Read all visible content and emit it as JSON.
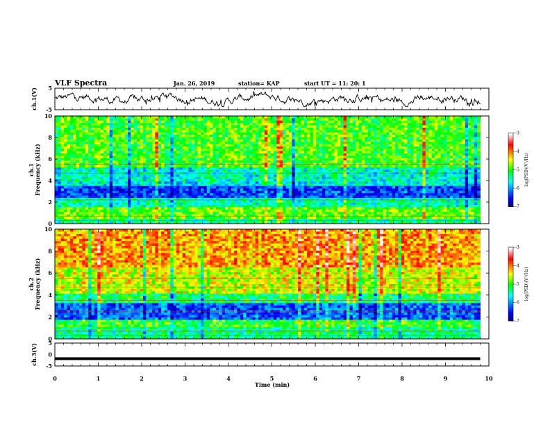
{
  "header": {
    "title": "VLF Spectra",
    "date": "Jan. 26, 2019",
    "station": "station= KAP",
    "start": "start  UT =   11: 20: 1"
  },
  "chart_data": [
    {
      "type": "line",
      "name": "ch1-waveform",
      "ylabel": "ch.1(V)",
      "ylim": [
        -5,
        5
      ],
      "yticks": [
        "5",
        "-5"
      ],
      "xlim": [
        0,
        10
      ],
      "mean": 0,
      "note_values": "dense noisy waveform between about -3 and 3 V"
    },
    {
      "type": "heatmap",
      "name": "ch1-spectrogram",
      "ylabel": "ch.1\nFrequency (kHz)",
      "ylabel_lines": [
        "ch.1",
        "Frequency (kHz)"
      ],
      "ylim": [
        0,
        10
      ],
      "yticks": [
        "0",
        "2",
        "4",
        "6",
        "8",
        "10"
      ],
      "xlim": [
        0,
        10
      ],
      "data_end_min": 9.8,
      "bands": [
        {
          "f0": 0.0,
          "f1": 0.5,
          "level": -5.3
        },
        {
          "f0": 0.5,
          "f1": 1.5,
          "level": -4.8
        },
        {
          "f0": 1.5,
          "f1": 2.5,
          "level": -5.4
        },
        {
          "f0": 2.5,
          "f1": 3.4,
          "level": -6.3
        },
        {
          "f0": 3.4,
          "f1": 4.0,
          "level": -5.6
        },
        {
          "f0": 4.0,
          "f1": 5.3,
          "level": -5.5
        },
        {
          "f0": 5.3,
          "f1": 6.5,
          "level": -4.9
        },
        {
          "f0": 6.5,
          "f1": 10.0,
          "level": -4.9
        }
      ],
      "colorbar": {
        "label": "log(PSD)(V²/Hz)",
        "ticks": [
          "-3",
          "-4",
          "-5",
          "-6",
          "-7"
        ],
        "range": [
          -7,
          -3
        ]
      }
    },
    {
      "type": "heatmap",
      "name": "ch2-spectrogram",
      "ylabel": "ch.2\nFrequency (kHz)",
      "ylabel_lines": [
        "ch.2",
        "Frequency (kHz)"
      ],
      "ylim": [
        0,
        10
      ],
      "yticks": [
        "0",
        "2",
        "4",
        "6",
        "8",
        "10"
      ],
      "xlim": [
        0,
        10
      ],
      "data_end_min": 9.8,
      "bands": [
        {
          "f0": 0.0,
          "f1": 1.0,
          "level": -5.3
        },
        {
          "f0": 1.0,
          "f1": 1.8,
          "level": -5.0
        },
        {
          "f0": 1.8,
          "f1": 3.3,
          "level": -6.2
        },
        {
          "f0": 3.3,
          "f1": 4.2,
          "level": -5.2
        },
        {
          "f0": 4.2,
          "f1": 6.5,
          "level": -4.5
        },
        {
          "f0": 6.5,
          "f1": 10.0,
          "level": -4.1
        }
      ],
      "colorbar": {
        "label": "log(PSD)(V²/Hz)",
        "ticks": [
          "-3",
          "-4",
          "-5",
          "-6",
          "-7"
        ],
        "range": [
          -7,
          -3
        ]
      }
    },
    {
      "type": "line",
      "name": "ch3-waveform",
      "ylabel": "ch.3(V)",
      "ylim": [
        -5,
        5
      ],
      "yticks": [
        "5",
        "0",
        "-5"
      ],
      "xlim": [
        0,
        10
      ],
      "constant_value": -1.8
    }
  ],
  "xaxis": {
    "label": "Time  (min)",
    "ticks": [
      "0",
      "1",
      "2",
      "3",
      "4",
      "5",
      "6",
      "7",
      "8",
      "9",
      "10"
    ]
  },
  "colors": {
    "scale": [
      "#000080",
      "#0000ff",
      "#00ffff",
      "#00ff00",
      "#ffff00",
      "#ff0000",
      "#ffffff"
    ]
  }
}
